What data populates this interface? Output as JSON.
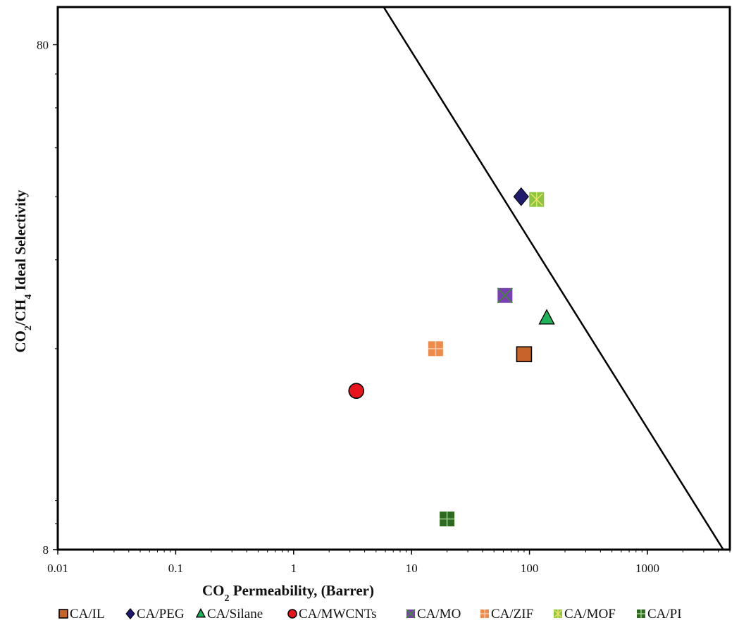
{
  "chart_data": {
    "type": "scatter",
    "title": "",
    "xlabel_parts": [
      "CO",
      "2",
      " Permeability, (Barrer)"
    ],
    "ylabel_parts": [
      "CO",
      "2",
      "/CH",
      "4",
      " Ideal Selectivity"
    ],
    "x_scale": "log",
    "y_scale": "log",
    "xlim": [
      0.01,
      5000
    ],
    "ylim": [
      8,
      95
    ],
    "x_ticks": [
      0.01,
      0.1,
      1,
      10,
      100,
      1000
    ],
    "x_tick_labels": [
      "0.01",
      "0.1",
      "1",
      "10",
      "100",
      "1000"
    ],
    "y_ticks": [
      8,
      80
    ],
    "y_tick_labels": [
      "8",
      "80"
    ],
    "grid": false,
    "legend_position": "bottom",
    "upper_bound_line": {
      "x": [
        5.8,
        4400
      ],
      "y": [
        95,
        8
      ]
    },
    "series": [
      {
        "name": "CA/IL",
        "marker": "square",
        "color": "#C8642A",
        "x": [
          90
        ],
        "y": [
          19.5
        ]
      },
      {
        "name": "CA/PEG",
        "marker": "diamond",
        "color": "#1F1A6E",
        "x": [
          85
        ],
        "y": [
          40
        ]
      },
      {
        "name": "CA/Silane",
        "marker": "triangle",
        "color": "#1DB35A",
        "x": [
          140
        ],
        "y": [
          23
        ]
      },
      {
        "name": "CA/MWCNTs",
        "marker": "circle",
        "color": "#E8161C",
        "x": [
          3.4
        ],
        "y": [
          16.5
        ]
      },
      {
        "name": "CA/MO",
        "marker": "square-x",
        "color": "#7A3FB4",
        "x": [
          62
        ],
        "y": [
          25.5
        ]
      },
      {
        "name": "CA/ZIF",
        "marker": "square-plus",
        "color": "#F08A4B",
        "x": [
          16
        ],
        "y": [
          20
        ]
      },
      {
        "name": "CA/MOF",
        "marker": "square-asterisk",
        "color": "#8CC63F",
        "x": [
          115
        ],
        "y": [
          39.5
        ]
      },
      {
        "name": "CA/PI",
        "marker": "square-plus-dark",
        "color": "#2E6B1E",
        "x": [
          20
        ],
        "y": [
          9.2
        ]
      }
    ]
  }
}
